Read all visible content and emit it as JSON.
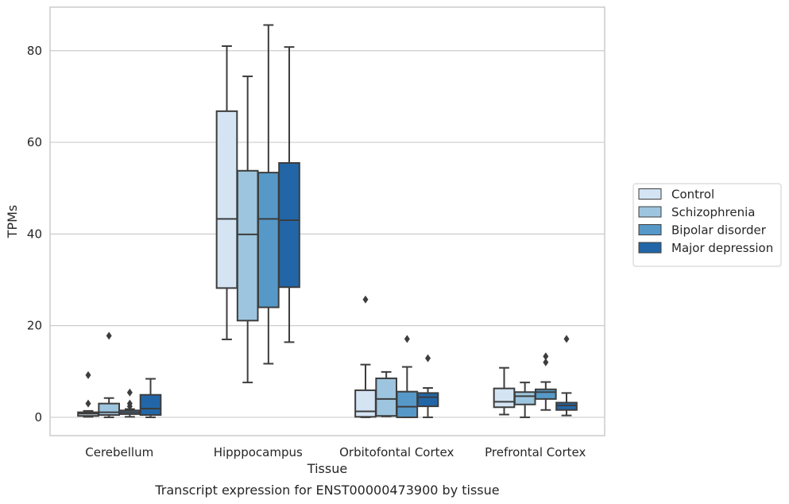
{
  "chart_data": {
    "type": "box",
    "xlabel": "Tissue",
    "ylabel": "TPMs",
    "caption": "Transcript expression for ENST00000473900 by tissue",
    "ylim": [
      -4,
      89.5
    ],
    "yticks": [
      0,
      20,
      40,
      60,
      80
    ],
    "grid": "horizontal",
    "legend_position": "right",
    "categories": [
      "Cerebellum",
      "Hipppocampus",
      "Orbitofontal Cortex",
      "Prefrontal Cortex"
    ],
    "series": [
      {
        "name": "Control",
        "color": "#d4e4f3",
        "boxes": [
          {
            "whisker_low": 0.1,
            "q1": 0.3,
            "median": 0.8,
            "q3": 1.1,
            "whisker_high": 1.4,
            "outliers": [
              9.2,
              3.0
            ]
          },
          {
            "whisker_low": 17.0,
            "q1": 28.2,
            "median": 43.3,
            "q3": 66.8,
            "whisker_high": 81.0,
            "outliers": []
          },
          {
            "whisker_low": 0.0,
            "q1": 0.1,
            "median": 1.3,
            "q3": 5.9,
            "whisker_high": 11.5,
            "outliers": [
              25.7
            ]
          },
          {
            "whisker_low": 0.6,
            "q1": 2.2,
            "median": 3.4,
            "q3": 6.3,
            "whisker_high": 10.8,
            "outliers": []
          }
        ]
      },
      {
        "name": "Schizophrenia",
        "color": "#9dc5df",
        "boxes": [
          {
            "whisker_low": 0.0,
            "q1": 0.5,
            "median": 1.1,
            "q3": 3.0,
            "whisker_high": 4.2,
            "outliers": [
              17.8
            ]
          },
          {
            "whisker_low": 7.6,
            "q1": 21.1,
            "median": 39.9,
            "q3": 53.8,
            "whisker_high": 74.4,
            "outliers": []
          },
          {
            "whisker_low": 0.2,
            "q1": 0.3,
            "median": 4.0,
            "q3": 8.5,
            "whisker_high": 9.9,
            "outliers": []
          },
          {
            "whisker_low": 0.0,
            "q1": 2.8,
            "median": 4.6,
            "q3": 5.5,
            "whisker_high": 7.6,
            "outliers": []
          }
        ]
      },
      {
        "name": "Bipolar disorder",
        "color": "#5699c8",
        "boxes": [
          {
            "whisker_low": 0.1,
            "q1": 0.7,
            "median": 1.1,
            "q3": 1.5,
            "whisker_high": 1.8,
            "outliers": [
              5.4,
              3.0,
              2.4
            ]
          },
          {
            "whisker_low": 11.7,
            "q1": 24.0,
            "median": 43.3,
            "q3": 53.4,
            "whisker_high": 85.6,
            "outliers": []
          },
          {
            "whisker_low": 0.0,
            "q1": 0.0,
            "median": 2.3,
            "q3": 5.6,
            "whisker_high": 11.0,
            "outliers": [
              17.1
            ]
          },
          {
            "whisker_low": 1.6,
            "q1": 4.0,
            "median": 5.5,
            "q3": 6.1,
            "whisker_high": 7.7,
            "outliers": [
              13.3,
              12.0
            ]
          }
        ]
      },
      {
        "name": "Major depression",
        "color": "#2266a8",
        "boxes": [
          {
            "whisker_low": 0.0,
            "q1": 0.5,
            "median": 1.9,
            "q3": 4.9,
            "whisker_high": 8.4,
            "outliers": []
          },
          {
            "whisker_low": 16.4,
            "q1": 28.4,
            "median": 43.0,
            "q3": 55.5,
            "whisker_high": 80.8,
            "outliers": []
          },
          {
            "whisker_low": 0.0,
            "q1": 2.4,
            "median": 4.4,
            "q3": 5.3,
            "whisker_high": 6.4,
            "outliers": [
              12.9
            ]
          },
          {
            "whisker_low": 0.4,
            "q1": 1.6,
            "median": 2.6,
            "q3": 3.2,
            "whisker_high": 5.3,
            "outliers": [
              17.1
            ]
          }
        ]
      }
    ]
  }
}
